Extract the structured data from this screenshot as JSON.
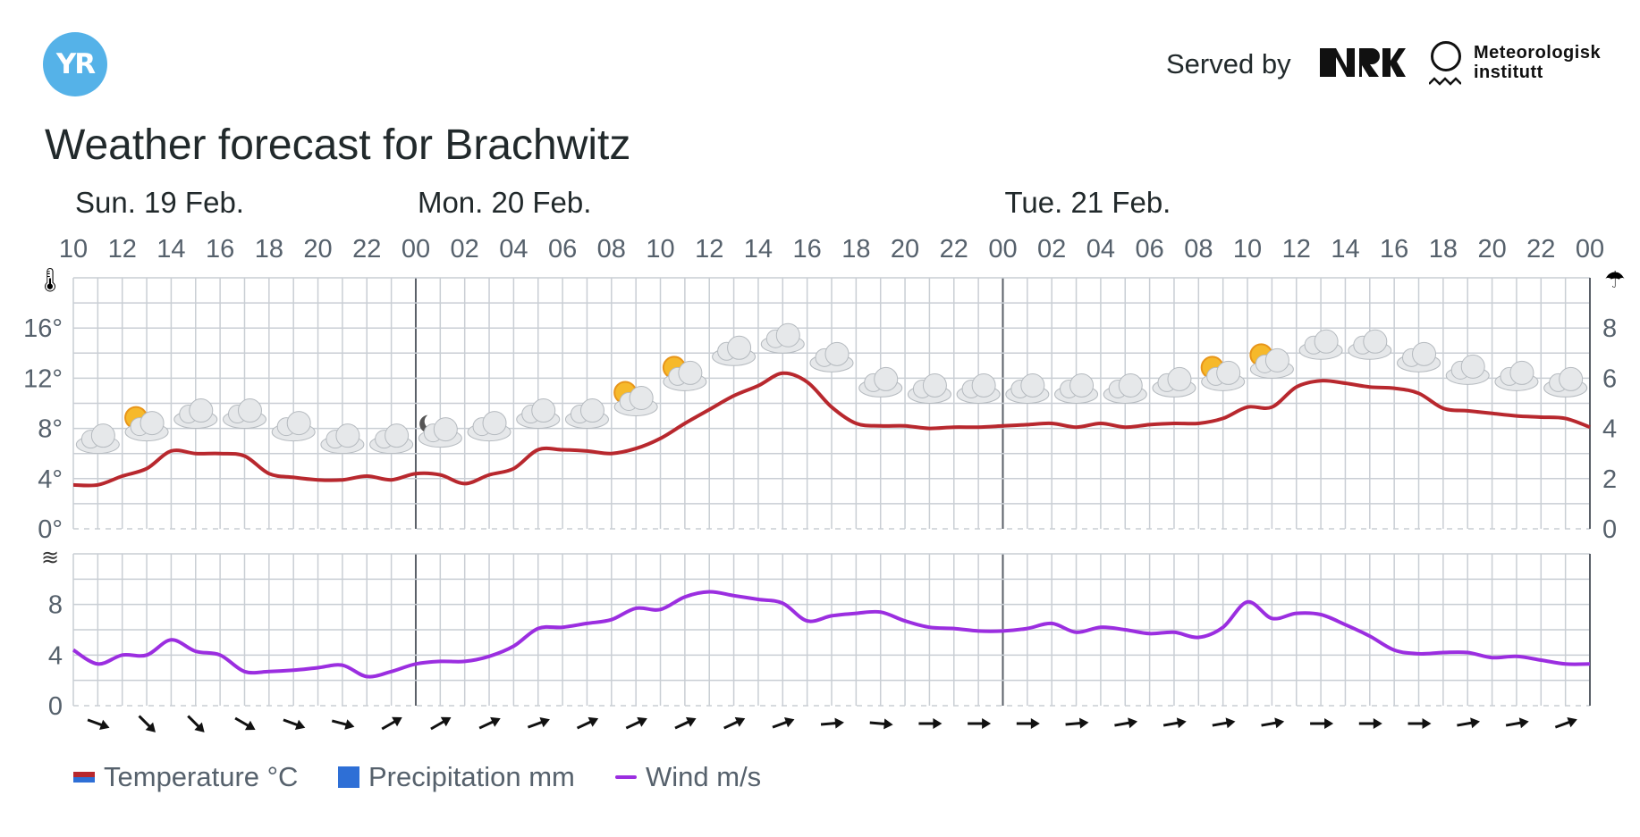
{
  "header": {
    "logo_text": "YR",
    "served_by": "Served by",
    "partner_1": "NRK",
    "partner_2_line1": "Meteorologisk",
    "partner_2_line2": "institutt"
  },
  "title": "Weather forecast for Brachwitz",
  "colors": {
    "temperature": "#b8282e",
    "temperature_legend_bottom": "#2e6fd6",
    "precipitation": "#2e6fd6",
    "wind": "#9b2ee0",
    "grid": "#c9ced4",
    "yr_blue": "#55b2e8"
  },
  "legend": {
    "temperature": "Temperature °C",
    "precipitation": "Precipitation mm",
    "wind": "Wind m/s"
  },
  "chart_data": [
    {
      "type": "line",
      "name": "temperature-precipitation",
      "days": [
        "Sun. 19 Feb.",
        "Mon. 20 Feb.",
        "Tue. 21 Feb."
      ],
      "x_tick_labels": [
        "10",
        "12",
        "14",
        "16",
        "18",
        "20",
        "22",
        "00",
        "02",
        "04",
        "06",
        "08",
        "10",
        "12",
        "14",
        "16",
        "18",
        "20",
        "22",
        "00",
        "02",
        "04",
        "06",
        "08",
        "10",
        "12",
        "14",
        "16",
        "18",
        "20",
        "22",
        "00"
      ],
      "x_range_hours": [
        0,
        62
      ],
      "x_start": "Sun. 19 Feb. 10:00",
      "y_left": {
        "ticks": [
          "0°",
          "4°",
          "8°",
          "12°",
          "16°"
        ],
        "ylim": [
          0,
          20
        ],
        "icon": "thermometer-icon"
      },
      "y_right": {
        "ticks": [
          "0",
          "2",
          "4",
          "6",
          "8"
        ],
        "ylim": [
          0,
          10
        ],
        "icon": "umbrella-icon"
      },
      "grid": true,
      "series": [
        {
          "name": "Temperature °C",
          "x": [
            0,
            1,
            2,
            3,
            4,
            5,
            6,
            7,
            8,
            9,
            10,
            11,
            12,
            13,
            14,
            15,
            16,
            17,
            18,
            19,
            20,
            21,
            22,
            23,
            24,
            25,
            26,
            27,
            28,
            29,
            30,
            31,
            32,
            33,
            34,
            35,
            36,
            37,
            38,
            39,
            40,
            41,
            42,
            43,
            44,
            45,
            46,
            47,
            48,
            49,
            50,
            51,
            52,
            53,
            54,
            55,
            56,
            57,
            58,
            59,
            60,
            61,
            62
          ],
          "values": [
            3.5,
            3.5,
            4.2,
            4.8,
            6.2,
            6.0,
            6.0,
            5.8,
            4.4,
            4.1,
            3.9,
            3.9,
            4.2,
            3.9,
            4.4,
            4.3,
            3.6,
            4.3,
            4.8,
            6.3,
            6.3,
            6.2,
            6.0,
            6.4,
            7.2,
            8.4,
            9.5,
            10.6,
            11.4,
            12.4,
            11.7,
            9.7,
            8.4,
            8.2,
            8.2,
            8.0,
            8.1,
            8.1,
            8.2,
            8.3,
            8.4,
            8.1,
            8.4,
            8.1,
            8.3,
            8.4,
            8.4,
            8.8,
            9.7,
            9.7,
            11.3,
            11.8,
            11.6,
            11.3,
            11.2,
            10.8,
            9.6,
            9.4,
            9.2,
            9.0,
            8.9,
            8.8,
            8.1
          ]
        },
        {
          "name": "Precipitation mm",
          "x": [],
          "values": []
        }
      ],
      "weather_symbols": [
        {
          "hour": 1,
          "icon": "cloud-icon",
          "temp_level": 7.0
        },
        {
          "hour": 3,
          "icon": "sun-behind-cloud-icon",
          "temp_level": 8.0
        },
        {
          "hour": 5,
          "icon": "cloud-icon",
          "temp_level": 9.0
        },
        {
          "hour": 7,
          "icon": "cloud-icon",
          "temp_level": 9.0
        },
        {
          "hour": 9,
          "icon": "cloud-icon",
          "temp_level": 8.0
        },
        {
          "hour": 11,
          "icon": "cloud-icon",
          "temp_level": 7.0
        },
        {
          "hour": 13,
          "icon": "cloud-icon",
          "temp_level": 7.0
        },
        {
          "hour": 15,
          "icon": "moon-behind-cloud-icon",
          "temp_level": 7.5
        },
        {
          "hour": 17,
          "icon": "cloud-icon",
          "temp_level": 8.0
        },
        {
          "hour": 19,
          "icon": "cloud-icon",
          "temp_level": 9.0
        },
        {
          "hour": 21,
          "icon": "cloud-icon",
          "temp_level": 9.0
        },
        {
          "hour": 23,
          "icon": "sun-behind-cloud-icon",
          "temp_level": 10.0
        },
        {
          "hour": 25,
          "icon": "sun-behind-cloud-icon",
          "temp_level": 12.0
        },
        {
          "hour": 27,
          "icon": "cloud-icon",
          "temp_level": 14.0
        },
        {
          "hour": 29,
          "icon": "cloud-icon",
          "temp_level": 15.0
        },
        {
          "hour": 31,
          "icon": "cloud-icon",
          "temp_level": 13.5
        },
        {
          "hour": 33,
          "icon": "cloud-icon",
          "temp_level": 11.5
        },
        {
          "hour": 35,
          "icon": "cloud-icon",
          "temp_level": 11.0
        },
        {
          "hour": 37,
          "icon": "cloud-icon",
          "temp_level": 11.0
        },
        {
          "hour": 39,
          "icon": "cloud-icon",
          "temp_level": 11.0
        },
        {
          "hour": 41,
          "icon": "cloud-icon",
          "temp_level": 11.0
        },
        {
          "hour": 43,
          "icon": "cloud-icon",
          "temp_level": 11.0
        },
        {
          "hour": 45,
          "icon": "cloud-icon",
          "temp_level": 11.5
        },
        {
          "hour": 47,
          "icon": "sun-behind-cloud-icon",
          "temp_level": 12.0
        },
        {
          "hour": 49,
          "icon": "sun-behind-cloud-icon",
          "temp_level": 13.0
        },
        {
          "hour": 51,
          "icon": "cloud-icon",
          "temp_level": 14.5
        },
        {
          "hour": 53,
          "icon": "cloud-icon",
          "temp_level": 14.5
        },
        {
          "hour": 55,
          "icon": "cloud-icon",
          "temp_level": 13.5
        },
        {
          "hour": 57,
          "icon": "cloud-icon",
          "temp_level": 12.5
        },
        {
          "hour": 59,
          "icon": "cloud-icon",
          "temp_level": 12.0
        },
        {
          "hour": 61,
          "icon": "cloud-icon",
          "temp_level": 11.5
        }
      ]
    },
    {
      "type": "line",
      "name": "wind",
      "x_range_hours": [
        0,
        62
      ],
      "y": {
        "ticks": [
          "0",
          "4",
          "8"
        ],
        "ylim": [
          0,
          12
        ],
        "icon": "wind-icon"
      },
      "grid": true,
      "series": [
        {
          "name": "Wind m/s",
          "x": [
            0,
            1,
            2,
            3,
            4,
            5,
            6,
            7,
            8,
            9,
            10,
            11,
            12,
            13,
            14,
            15,
            16,
            17,
            18,
            19,
            20,
            21,
            22,
            23,
            24,
            25,
            26,
            27,
            28,
            29,
            30,
            31,
            32,
            33,
            34,
            35,
            36,
            37,
            38,
            39,
            40,
            41,
            42,
            43,
            44,
            45,
            46,
            47,
            48,
            49,
            50,
            51,
            52,
            53,
            54,
            55,
            56,
            57,
            58,
            59,
            60,
            61,
            62
          ],
          "values": [
            4.4,
            3.3,
            4.0,
            4.0,
            5.2,
            4.3,
            4.0,
            2.7,
            2.7,
            2.8,
            3.0,
            3.2,
            2.3,
            2.7,
            3.3,
            3.5,
            3.5,
            3.9,
            4.7,
            6.1,
            6.2,
            6.5,
            6.8,
            7.7,
            7.6,
            8.6,
            9.0,
            8.7,
            8.4,
            8.1,
            6.7,
            7.1,
            7.3,
            7.4,
            6.7,
            6.2,
            6.1,
            5.9,
            5.9,
            6.1,
            6.5,
            5.8,
            6.2,
            6.0,
            5.7,
            5.8,
            5.4,
            6.2,
            8.2,
            6.9,
            7.3,
            7.2,
            6.4,
            5.5,
            4.4,
            4.1,
            4.2,
            4.2,
            3.8,
            3.9,
            3.6,
            3.3,
            3.3
          ]
        }
      ],
      "wind_direction_degrees": [
        20,
        45,
        45,
        30,
        20,
        15,
        -30,
        -30,
        -25,
        -20,
        -25,
        -25,
        -25,
        -25,
        -20,
        -5,
        5,
        0,
        0,
        0,
        -5,
        -10,
        -10,
        -10,
        -10,
        0,
        0,
        0,
        -10,
        -10,
        -20
      ]
    }
  ]
}
